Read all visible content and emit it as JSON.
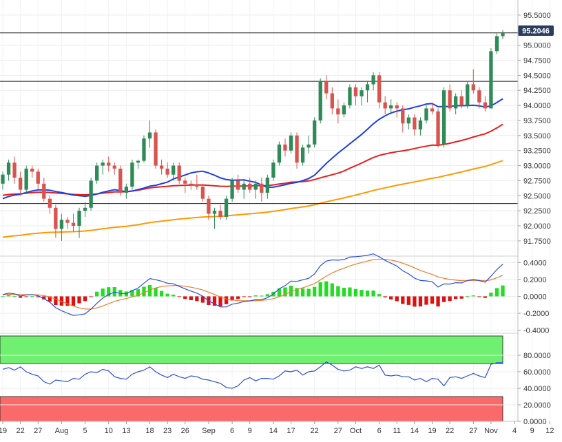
{
  "chart_data": [
    {
      "type": "candlestick",
      "panel": "price",
      "current_price_label": "95.2046",
      "current_price": 95.2046,
      "y_ticks": [
        "91.7500",
        "92.0000",
        "92.2500",
        "92.5000",
        "92.7500",
        "93.0000",
        "93.2500",
        "93.5000",
        "93.7500",
        "94.0000",
        "94.2500",
        "94.5000",
        "94.7500",
        "95.0000",
        "95.5000"
      ],
      "y_tick_values": [
        91.75,
        92.0,
        92.25,
        92.5,
        92.75,
        93.0,
        93.25,
        93.5,
        93.75,
        94.0,
        94.25,
        94.5,
        94.75,
        95.0,
        95.5
      ],
      "ylim": [
        91.52,
        95.75
      ],
      "horizontal_lines": [
        95.2046,
        94.4,
        92.37
      ],
      "candles": [
        [
          92.7,
          92.9,
          92.6,
          92.85
        ],
        [
          92.85,
          93.1,
          92.75,
          93.05
        ],
        [
          93.05,
          93.15,
          92.7,
          92.8
        ],
        [
          92.8,
          92.9,
          92.5,
          92.6
        ],
        [
          92.6,
          93.0,
          92.55,
          92.95
        ],
        [
          92.95,
          93.0,
          92.8,
          92.9
        ],
        [
          92.9,
          92.95,
          92.6,
          92.7
        ],
        [
          92.7,
          92.8,
          92.4,
          92.45
        ],
        [
          92.45,
          92.5,
          92.2,
          92.3
        ],
        [
          92.3,
          92.35,
          91.8,
          91.95
        ],
        [
          91.95,
          92.2,
          91.75,
          92.1
        ],
        [
          92.1,
          92.15,
          91.95,
          92.05
        ],
        [
          92.05,
          92.2,
          91.9,
          92.0
        ],
        [
          92.0,
          92.3,
          91.8,
          92.25
        ],
        [
          92.25,
          92.4,
          92.15,
          92.3
        ],
        [
          92.3,
          92.8,
          92.25,
          92.75
        ],
        [
          92.75,
          93.05,
          92.7,
          93.0
        ],
        [
          93.0,
          93.1,
          92.85,
          93.05
        ],
        [
          93.05,
          93.15,
          92.9,
          93.0
        ],
        [
          93.0,
          93.05,
          92.85,
          92.95
        ],
        [
          92.95,
          93.0,
          92.5,
          92.55
        ],
        [
          92.55,
          92.7,
          92.45,
          92.65
        ],
        [
          92.65,
          93.1,
          92.6,
          93.05
        ],
        [
          93.05,
          93.1,
          92.95,
          93.08
        ],
        [
          93.08,
          93.5,
          93.05,
          93.45
        ],
        [
          93.45,
          93.75,
          93.3,
          93.55
        ],
        [
          93.55,
          93.6,
          92.95,
          93.0
        ],
        [
          93.0,
          93.1,
          92.85,
          92.95
        ],
        [
          92.95,
          93.05,
          92.8,
          92.85
        ],
        [
          92.85,
          93.05,
          92.75,
          93.0
        ],
        [
          93.0,
          93.05,
          92.7,
          92.75
        ],
        [
          92.75,
          92.8,
          92.55,
          92.7
        ],
        [
          92.7,
          92.75,
          92.6,
          92.68
        ],
        [
          92.68,
          92.85,
          92.6,
          92.65
        ],
        [
          92.65,
          92.7,
          92.4,
          92.45
        ],
        [
          92.45,
          92.5,
          92.1,
          92.2
        ],
        [
          92.2,
          92.3,
          91.95,
          92.25
        ],
        [
          92.25,
          92.35,
          92.1,
          92.15
        ],
        [
          92.15,
          92.5,
          92.1,
          92.45
        ],
        [
          92.45,
          92.8,
          92.4,
          92.75
        ],
        [
          92.75,
          92.85,
          92.55,
          92.6
        ],
        [
          92.6,
          92.75,
          92.45,
          92.7
        ],
        [
          92.7,
          92.8,
          92.55,
          92.6
        ],
        [
          92.6,
          92.75,
          92.45,
          92.7
        ],
        [
          92.7,
          92.8,
          92.4,
          92.55
        ],
        [
          92.55,
          92.85,
          92.45,
          92.8
        ],
        [
          92.8,
          93.1,
          92.75,
          93.05
        ],
        [
          93.05,
          93.4,
          93.0,
          93.35
        ],
        [
          93.35,
          93.45,
          93.15,
          93.25
        ],
        [
          93.25,
          93.55,
          93.2,
          93.5
        ],
        [
          93.5,
          93.55,
          92.95,
          93.05
        ],
        [
          93.05,
          93.35,
          93.0,
          93.3
        ],
        [
          93.3,
          93.5,
          93.2,
          93.35
        ],
        [
          93.35,
          93.8,
          93.3,
          93.75
        ],
        [
          93.75,
          94.45,
          93.7,
          94.4
        ],
        [
          94.4,
          94.5,
          94.1,
          94.2
        ],
        [
          94.2,
          94.3,
          93.85,
          93.95
        ],
        [
          93.95,
          94.1,
          93.7,
          93.85
        ],
        [
          93.85,
          94.05,
          93.8,
          94.0
        ],
        [
          94.0,
          94.35,
          93.95,
          94.3
        ],
        [
          94.3,
          94.35,
          94.0,
          94.15
        ],
        [
          94.15,
          94.3,
          94.0,
          94.25
        ],
        [
          94.25,
          94.4,
          94.05,
          94.35
        ],
        [
          94.35,
          94.55,
          94.25,
          94.5
        ],
        [
          94.5,
          94.55,
          93.95,
          94.05
        ],
        [
          94.05,
          94.15,
          93.85,
          93.95
        ],
        [
          93.95,
          94.1,
          93.85,
          94.0
        ],
        [
          94.0,
          94.05,
          93.8,
          93.95
        ],
        [
          93.95,
          94.0,
          93.55,
          93.7
        ],
        [
          93.7,
          93.85,
          93.6,
          93.8
        ],
        [
          93.8,
          93.85,
          93.5,
          93.6
        ],
        [
          93.6,
          93.8,
          93.5,
          93.75
        ],
        [
          93.75,
          94.0,
          93.7,
          93.95
        ],
        [
          93.95,
          94.05,
          93.85,
          93.9
        ],
        [
          93.9,
          93.95,
          93.3,
          93.35
        ],
        [
          93.35,
          94.3,
          93.3,
          94.25
        ],
        [
          94.25,
          94.35,
          93.9,
          93.95
        ],
        [
          93.95,
          94.2,
          93.85,
          94.15
        ],
        [
          94.15,
          94.25,
          93.95,
          94.0
        ],
        [
          94.0,
          94.4,
          93.95,
          94.35
        ],
        [
          94.35,
          94.6,
          94.2,
          94.25
        ],
        [
          94.25,
          94.3,
          93.95,
          94.05
        ],
        [
          94.05,
          94.15,
          93.9,
          93.95
        ],
        [
          93.95,
          94.95,
          93.95,
          94.9
        ],
        [
          94.9,
          95.2,
          94.85,
          95.15
        ],
        [
          95.15,
          95.25,
          95.1,
          95.2
        ]
      ],
      "x_tick_labels": [
        "19",
        "22",
        "27",
        "Aug",
        "5",
        "10",
        "13",
        "18",
        "23",
        "26",
        "Sep",
        "6",
        "9",
        "14",
        "17",
        "22",
        "27",
        "Oct",
        "6",
        "11",
        "14",
        "19",
        "22",
        "27",
        "Nov",
        "4",
        "9",
        "12"
      ],
      "x_tick_indices": [
        0,
        3,
        6,
        10,
        14,
        18,
        21,
        25,
        28,
        31,
        35,
        39,
        42,
        46,
        49,
        53,
        57,
        60,
        64,
        67,
        70,
        73,
        76,
        80,
        83,
        87,
        90,
        93
      ]
    },
    {
      "type": "line",
      "panel": "macd",
      "y_ticks": [
        "0.4000",
        "0.2000",
        "0.0000",
        "-0.2000",
        "-0.4000"
      ],
      "y_tick_values": [
        0.4,
        0.2,
        0.0,
        -0.2,
        -0.4
      ],
      "ylim": [
        -0.42,
        0.46
      ]
    },
    {
      "type": "line",
      "panel": "rsi",
      "y_ticks": [
        "80.0000",
        "60.0000",
        "40.0000",
        "20.0000",
        "0.0000"
      ],
      "y_tick_values": [
        80,
        60,
        40,
        20,
        0
      ],
      "ylim": [
        0,
        105
      ],
      "overbought_level": 70,
      "oversold_level": 30,
      "rsi_values": [
        63,
        65,
        62,
        66,
        60,
        57,
        55,
        48,
        45,
        50,
        49,
        48,
        52,
        51,
        57,
        60,
        59,
        63,
        61,
        54,
        52,
        51,
        57,
        60,
        62,
        66,
        60,
        56,
        53,
        57,
        54,
        52,
        55,
        54,
        51,
        50,
        48,
        46,
        41,
        40,
        43,
        50,
        53,
        49,
        52,
        52,
        51,
        55,
        61,
        60,
        62,
        56,
        60,
        61,
        66,
        72,
        68,
        63,
        61,
        62,
        66,
        64,
        66,
        64,
        68,
        56,
        55,
        56,
        54,
        54,
        50,
        52,
        48,
        52,
        51,
        43,
        53,
        54,
        52,
        55,
        58,
        55,
        53,
        69,
        71,
        71
      ]
    }
  ]
}
